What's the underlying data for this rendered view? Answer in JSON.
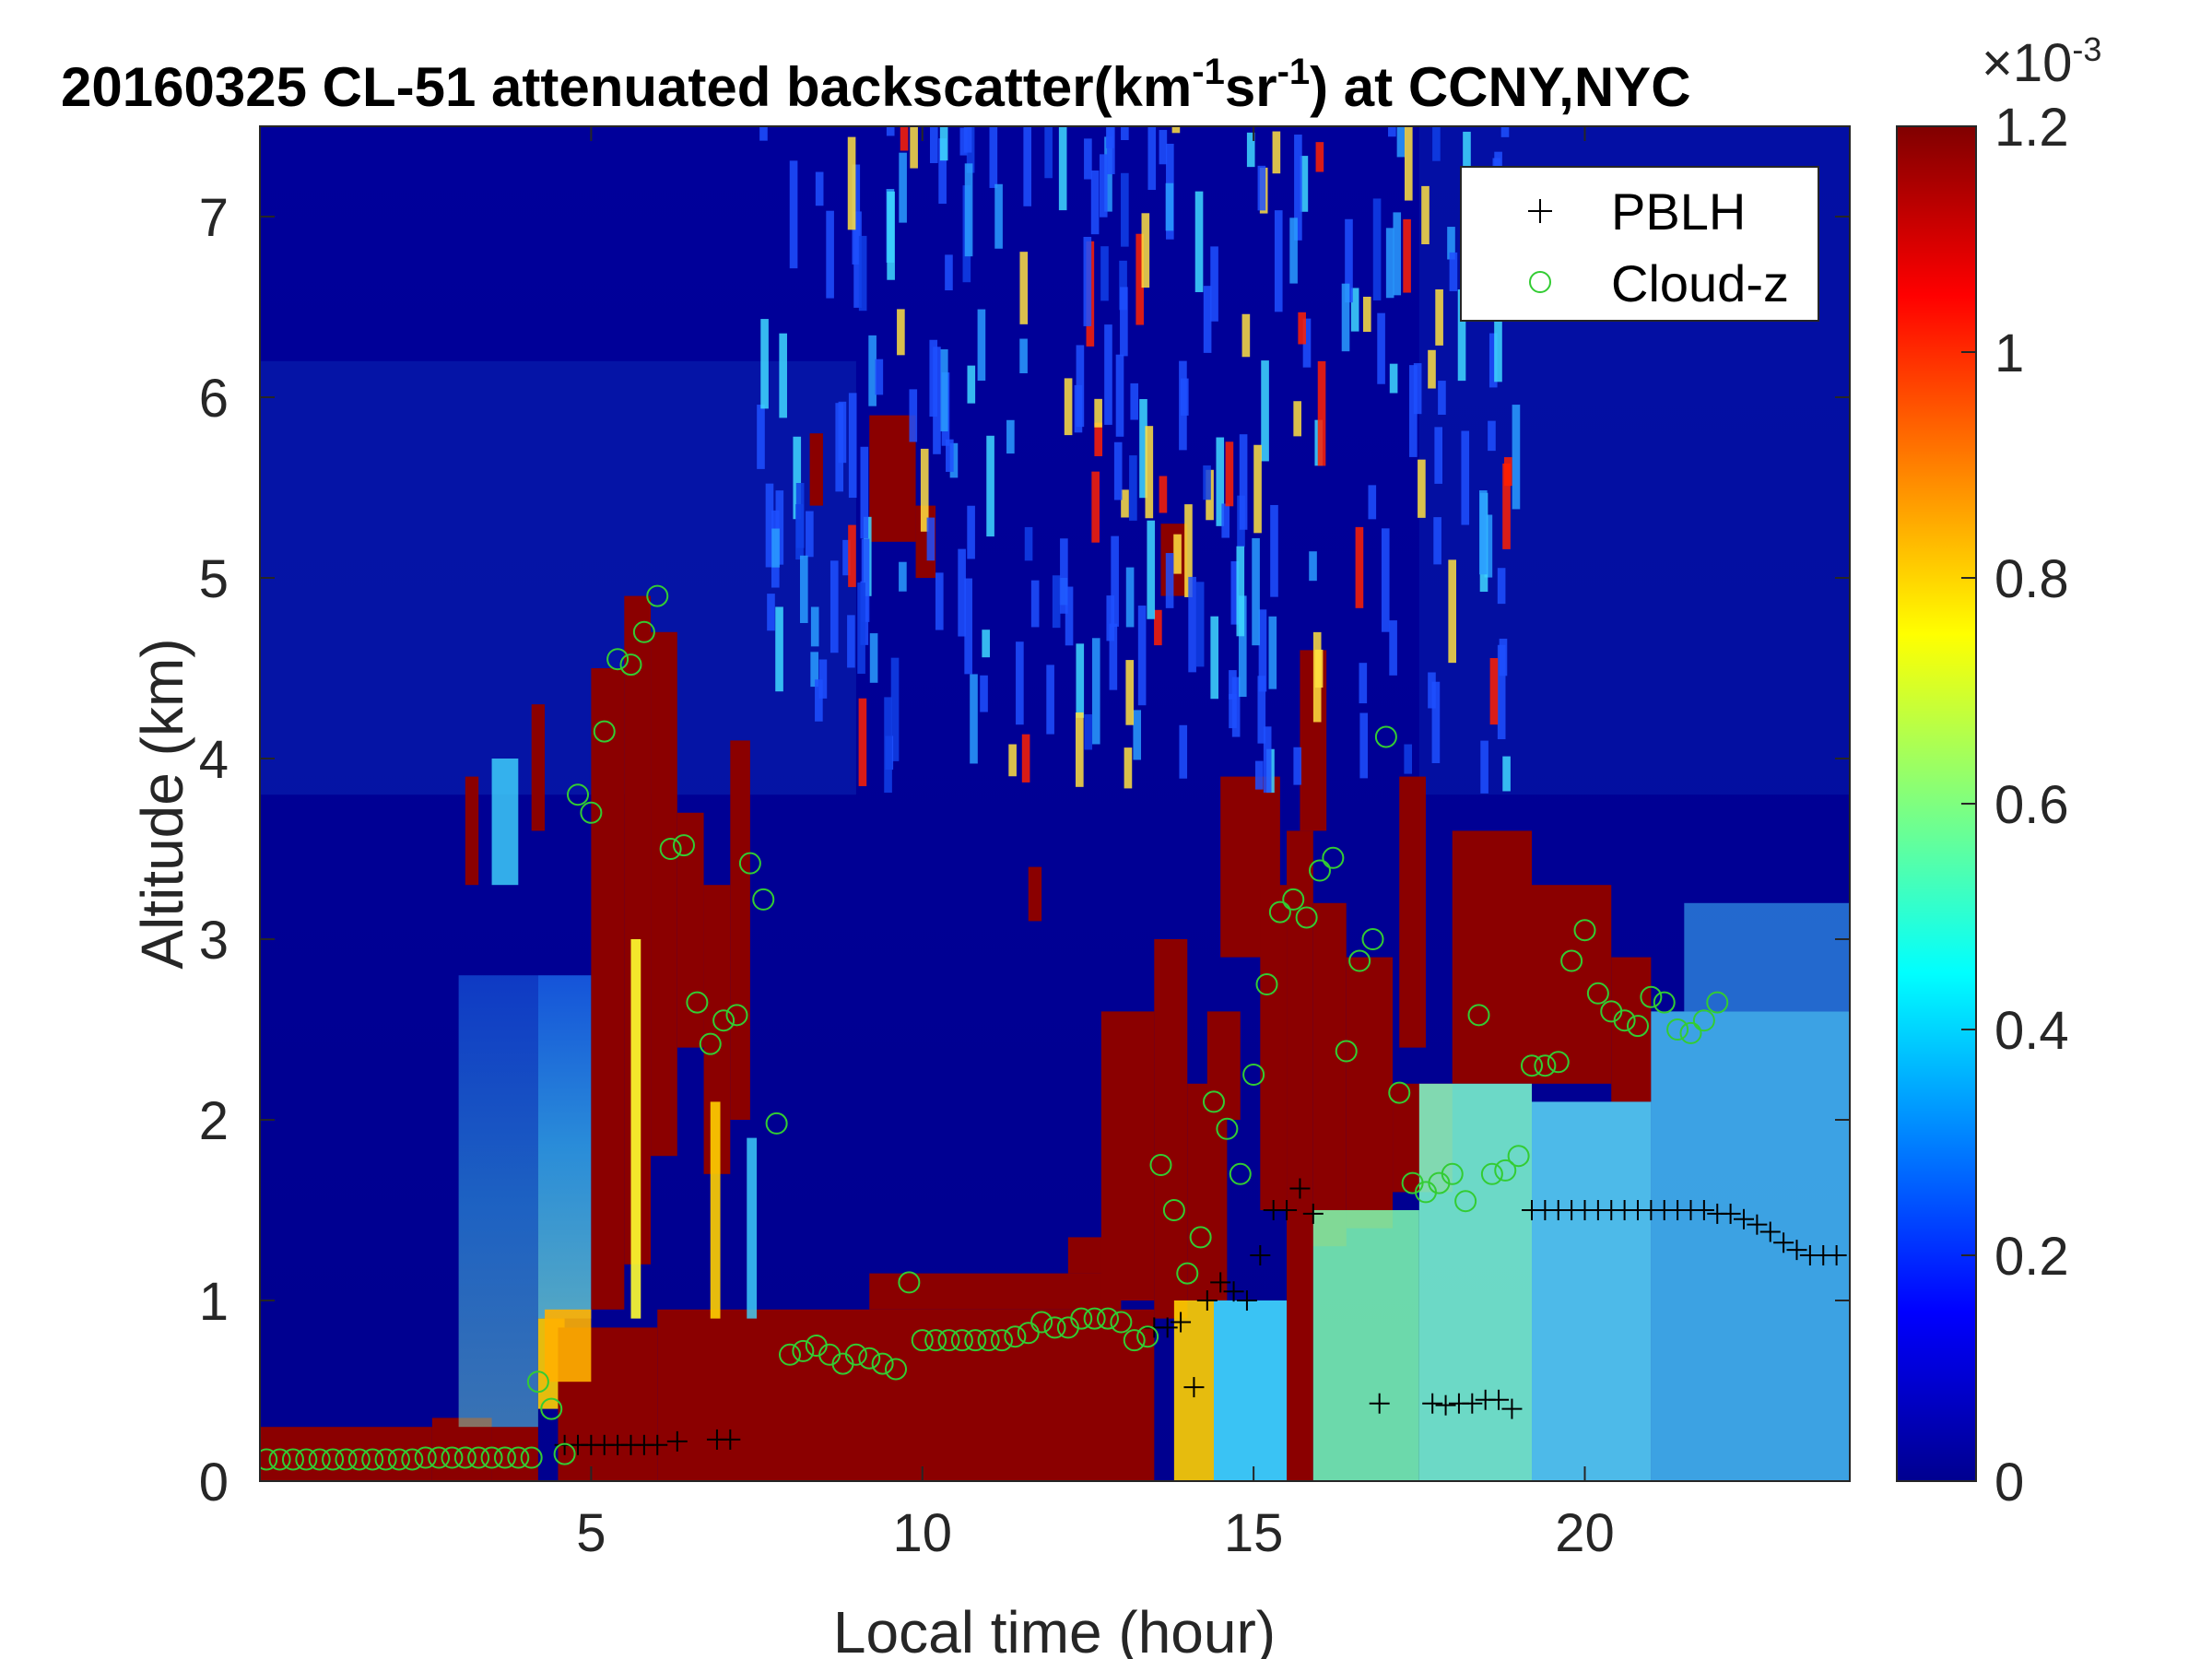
{
  "chart_data": {
    "type": "heatmap",
    "title": {
      "main": "20160325  CL-51 attenuated backscatter(km",
      "sup1": "-1",
      "mid": "sr",
      "sup2": "-1",
      "end": ") at CCNY,NYC"
    },
    "xlabel": "Local time (hour)",
    "ylabel": "Altitude (km)",
    "xlim": [
      0,
      24
    ],
    "ylim": [
      0,
      7.5
    ],
    "xticks": [
      5,
      10,
      15,
      20
    ],
    "yticks": [
      0,
      1,
      2,
      3,
      4,
      5,
      6,
      7
    ],
    "colorbar": {
      "clim": [
        0,
        0.0012
      ],
      "ticks": [
        0,
        0.2,
        0.4,
        0.6,
        0.8,
        1,
        1.2
      ],
      "exponent_label": "×10",
      "exponent": "-3",
      "colormap": "jet"
    },
    "legend": {
      "position": "top-right",
      "entries": [
        {
          "label": "PBLH",
          "marker": "+",
          "color": "#000000"
        },
        {
          "label": "Cloud-z",
          "marker": "o",
          "color": "#33cc33"
        }
      ]
    },
    "series": [
      {
        "name": "PBLH",
        "points": [
          [
            4.6,
            0.2
          ],
          [
            4.8,
            0.2
          ],
          [
            5.0,
            0.2
          ],
          [
            5.2,
            0.2
          ],
          [
            5.4,
            0.2
          ],
          [
            5.6,
            0.2
          ],
          [
            5.8,
            0.2
          ],
          [
            6.0,
            0.2
          ],
          [
            6.3,
            0.22
          ],
          [
            6.9,
            0.23
          ],
          [
            7.1,
            0.23
          ],
          [
            13.5,
            0.85
          ],
          [
            13.7,
            0.85
          ],
          [
            13.9,
            0.88
          ],
          [
            14.1,
            0.52
          ],
          [
            14.3,
            1.0
          ],
          [
            14.5,
            1.1
          ],
          [
            14.7,
            1.05
          ],
          [
            14.9,
            1.0
          ],
          [
            15.1,
            1.25
          ],
          [
            15.3,
            1.5
          ],
          [
            15.5,
            1.5
          ],
          [
            15.7,
            1.62
          ],
          [
            15.9,
            1.48
          ],
          [
            16.9,
            0.43
          ],
          [
            17.7,
            0.43
          ],
          [
            17.9,
            0.42
          ],
          [
            18.1,
            0.43
          ],
          [
            18.3,
            0.43
          ],
          [
            18.5,
            0.45
          ],
          [
            18.7,
            0.45
          ],
          [
            18.9,
            0.4
          ],
          [
            19.2,
            1.5
          ],
          [
            19.4,
            1.5
          ],
          [
            19.6,
            1.5
          ],
          [
            19.8,
            1.5
          ],
          [
            20.0,
            1.5
          ],
          [
            20.2,
            1.5
          ],
          [
            20.4,
            1.5
          ],
          [
            20.6,
            1.5
          ],
          [
            20.8,
            1.5
          ],
          [
            21.0,
            1.5
          ],
          [
            21.2,
            1.5
          ],
          [
            21.4,
            1.5
          ],
          [
            21.6,
            1.5
          ],
          [
            21.8,
            1.5
          ],
          [
            22.0,
            1.48
          ],
          [
            22.2,
            1.48
          ],
          [
            22.4,
            1.45
          ],
          [
            22.6,
            1.42
          ],
          [
            22.8,
            1.38
          ],
          [
            23.0,
            1.32
          ],
          [
            23.2,
            1.28
          ],
          [
            23.4,
            1.25
          ],
          [
            23.6,
            1.25
          ],
          [
            23.8,
            1.25
          ]
        ]
      },
      {
        "name": "Cloud-z",
        "points": [
          [
            0.1,
            0.12
          ],
          [
            0.3,
            0.12
          ],
          [
            0.5,
            0.12
          ],
          [
            0.7,
            0.12
          ],
          [
            0.9,
            0.12
          ],
          [
            1.1,
            0.12
          ],
          [
            1.3,
            0.12
          ],
          [
            1.5,
            0.12
          ],
          [
            1.7,
            0.12
          ],
          [
            1.9,
            0.12
          ],
          [
            2.1,
            0.12
          ],
          [
            2.3,
            0.12
          ],
          [
            2.5,
            0.13
          ],
          [
            2.7,
            0.13
          ],
          [
            2.9,
            0.13
          ],
          [
            3.1,
            0.13
          ],
          [
            3.3,
            0.13
          ],
          [
            3.5,
            0.13
          ],
          [
            3.7,
            0.13
          ],
          [
            3.9,
            0.13
          ],
          [
            4.1,
            0.13
          ],
          [
            4.2,
            0.55
          ],
          [
            4.4,
            0.4
          ],
          [
            4.6,
            0.15
          ],
          [
            4.8,
            3.8
          ],
          [
            5.0,
            3.7
          ],
          [
            5.2,
            4.15
          ],
          [
            5.4,
            4.55
          ],
          [
            5.6,
            4.52
          ],
          [
            5.8,
            4.7
          ],
          [
            6.0,
            4.9
          ],
          [
            6.2,
            3.5
          ],
          [
            6.4,
            3.52
          ],
          [
            6.6,
            2.65
          ],
          [
            6.8,
            2.42
          ],
          [
            7.0,
            2.55
          ],
          [
            7.2,
            2.58
          ],
          [
            7.4,
            3.42
          ],
          [
            7.6,
            3.22
          ],
          [
            7.8,
            1.98
          ],
          [
            8.0,
            0.7
          ],
          [
            8.2,
            0.72
          ],
          [
            8.4,
            0.75
          ],
          [
            8.6,
            0.7
          ],
          [
            8.8,
            0.65
          ],
          [
            9.0,
            0.7
          ],
          [
            9.2,
            0.68
          ],
          [
            9.4,
            0.65
          ],
          [
            9.6,
            0.62
          ],
          [
            9.8,
            1.1
          ],
          [
            10.0,
            0.78
          ],
          [
            10.2,
            0.78
          ],
          [
            10.4,
            0.78
          ],
          [
            10.6,
            0.78
          ],
          [
            10.8,
            0.78
          ],
          [
            11.0,
            0.78
          ],
          [
            11.2,
            0.78
          ],
          [
            11.4,
            0.8
          ],
          [
            11.6,
            0.82
          ],
          [
            11.8,
            0.88
          ],
          [
            12.0,
            0.85
          ],
          [
            12.2,
            0.85
          ],
          [
            12.4,
            0.9
          ],
          [
            12.6,
            0.9
          ],
          [
            12.8,
            0.9
          ],
          [
            13.0,
            0.88
          ],
          [
            13.2,
            0.78
          ],
          [
            13.4,
            0.8
          ],
          [
            13.6,
            1.75
          ],
          [
            13.8,
            1.5
          ],
          [
            14.0,
            1.15
          ],
          [
            14.2,
            1.35
          ],
          [
            14.4,
            2.1
          ],
          [
            14.6,
            1.95
          ],
          [
            14.8,
            1.7
          ],
          [
            15.0,
            2.25
          ],
          [
            15.2,
            2.75
          ],
          [
            15.4,
            3.15
          ],
          [
            15.6,
            3.22
          ],
          [
            15.8,
            3.12
          ],
          [
            16.0,
            3.38
          ],
          [
            16.2,
            3.45
          ],
          [
            16.4,
            2.38
          ],
          [
            16.6,
            2.88
          ],
          [
            16.8,
            3.0
          ],
          [
            17.0,
            4.12
          ],
          [
            17.2,
            2.15
          ],
          [
            17.4,
            1.65
          ],
          [
            17.6,
            1.6
          ],
          [
            17.8,
            1.65
          ],
          [
            18.0,
            1.7
          ],
          [
            18.2,
            1.55
          ],
          [
            18.4,
            2.58
          ],
          [
            18.6,
            1.7
          ],
          [
            18.8,
            1.72
          ],
          [
            19.0,
            1.8
          ],
          [
            19.2,
            2.3
          ],
          [
            19.4,
            2.3
          ],
          [
            19.6,
            2.32
          ],
          [
            19.8,
            2.88
          ],
          [
            20.0,
            3.05
          ],
          [
            20.2,
            2.7
          ],
          [
            20.4,
            2.6
          ],
          [
            20.6,
            2.55
          ],
          [
            20.8,
            2.52
          ],
          [
            21.0,
            2.68
          ],
          [
            21.2,
            2.65
          ],
          [
            21.4,
            2.5
          ],
          [
            21.6,
            2.48
          ],
          [
            21.8,
            2.55
          ],
          [
            22.0,
            2.65
          ]
        ]
      }
    ]
  }
}
